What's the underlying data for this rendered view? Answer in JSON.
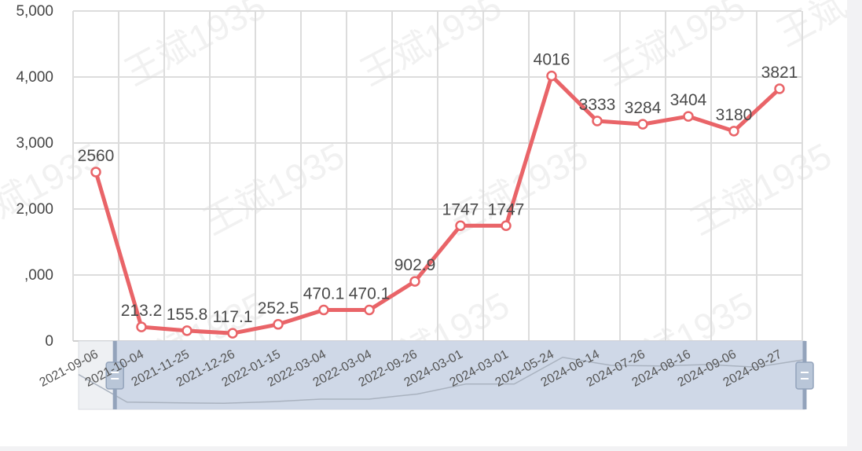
{
  "watermark": "王斌1935",
  "chart_data": {
    "type": "line",
    "x": [
      "2021-09-06",
      "2021-10-04",
      "2021-11-25",
      "2021-12-26",
      "2022-01-15",
      "2022-03-04",
      "2022-03-04",
      "2022-09-26",
      "2024-03-01",
      "2024-03-01",
      "2024-05-24",
      "2024-06-14",
      "2024-07-26",
      "2024-08-16",
      "2024-09-06",
      "2024-09-27"
    ],
    "series": [
      {
        "values": [
          2560,
          213.2,
          155.8,
          117.1,
          252.5,
          470.1,
          470.1,
          902.9,
          1747,
          1747,
          4016,
          3333,
          3284,
          3404,
          3180,
          3821
        ]
      }
    ],
    "y_tick_labels": [
      "0",
      ",000",
      "2,000",
      "3,000",
      "4,000",
      "5,000"
    ],
    "ylim": [
      0,
      5000
    ],
    "grid": true,
    "line_color": "#e96468",
    "zoom_slider": {
      "start": 0.05,
      "end": 1.0
    }
  }
}
